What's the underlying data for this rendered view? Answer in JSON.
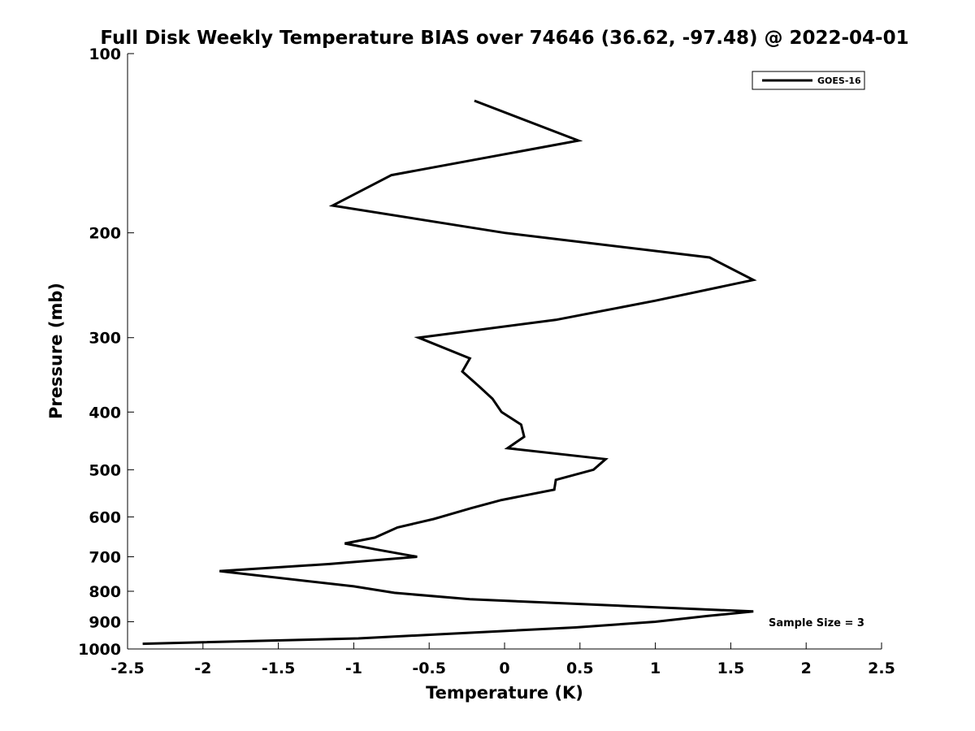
{
  "chart_data": {
    "type": "line",
    "title": "Full Disk Weekly Temperature BIAS over 74646 (36.62, -97.48) @ 2022-04-01",
    "xlabel": "Temperature (K)",
    "ylabel": "Pressure (mb)",
    "xlim": [
      -2.5,
      2.5
    ],
    "ylim": [
      1000,
      100
    ],
    "yscale": "log",
    "y_reversed": true,
    "x_ticks": [
      -2.5,
      -2,
      -1.5,
      -1,
      -0.5,
      0,
      0.5,
      1,
      1.5,
      2,
      2.5
    ],
    "x_tick_labels": [
      "-2.5",
      "-2",
      "-1.5",
      "-1",
      "-0.5",
      "0",
      "0.5",
      "1",
      "1.5",
      "2",
      "2.5"
    ],
    "y_ticks": [
      100,
      200,
      300,
      400,
      500,
      600,
      700,
      800,
      900,
      1000
    ],
    "y_tick_labels": [
      "100",
      "200",
      "300",
      "400",
      "500",
      "600",
      "700",
      "800",
      "900",
      "1000"
    ],
    "grid": false,
    "legend_position": "top-right",
    "series": [
      {
        "name": "GOES-16",
        "color": "#000000",
        "points": [
          {
            "t": -0.2,
            "p": 120
          },
          {
            "t": 0.49,
            "p": 140
          },
          {
            "t": -0.75,
            "p": 160
          },
          {
            "t": -1.14,
            "p": 180
          },
          {
            "t": 0.0,
            "p": 200
          },
          {
            "t": 1.36,
            "p": 220
          },
          {
            "t": 1.65,
            "p": 240
          },
          {
            "t": 1.0,
            "p": 260
          },
          {
            "t": 0.34,
            "p": 280
          },
          {
            "t": -0.57,
            "p": 300
          },
          {
            "t": -0.23,
            "p": 325
          },
          {
            "t": -0.28,
            "p": 342
          },
          {
            "t": -0.17,
            "p": 362
          },
          {
            "t": -0.08,
            "p": 380
          },
          {
            "t": -0.02,
            "p": 400
          },
          {
            "t": 0.11,
            "p": 420
          },
          {
            "t": 0.13,
            "p": 440
          },
          {
            "t": 0.02,
            "p": 460
          },
          {
            "t": 0.67,
            "p": 480
          },
          {
            "t": 0.59,
            "p": 500
          },
          {
            "t": 0.34,
            "p": 520
          },
          {
            "t": 0.33,
            "p": 540
          },
          {
            "t": -0.02,
            "p": 562
          },
          {
            "t": -0.22,
            "p": 580
          },
          {
            "t": -0.47,
            "p": 605
          },
          {
            "t": -0.71,
            "p": 625
          },
          {
            "t": -0.86,
            "p": 650
          },
          {
            "t": -1.06,
            "p": 665
          },
          {
            "t": -0.86,
            "p": 680
          },
          {
            "t": -0.58,
            "p": 700
          },
          {
            "t": -1.16,
            "p": 720
          },
          {
            "t": -1.89,
            "p": 740
          },
          {
            "t": -1.0,
            "p": 785
          },
          {
            "t": -0.73,
            "p": 805
          },
          {
            "t": -0.23,
            "p": 825
          },
          {
            "t": 1.65,
            "p": 865
          },
          {
            "t": 1.35,
            "p": 880
          },
          {
            "t": 1.0,
            "p": 900
          },
          {
            "t": 0.47,
            "p": 920
          },
          {
            "t": -0.44,
            "p": 945
          },
          {
            "t": -0.97,
            "p": 960
          },
          {
            "t": -2.4,
            "p": 980
          }
        ]
      }
    ],
    "annotation": "Sample Size = 3"
  }
}
